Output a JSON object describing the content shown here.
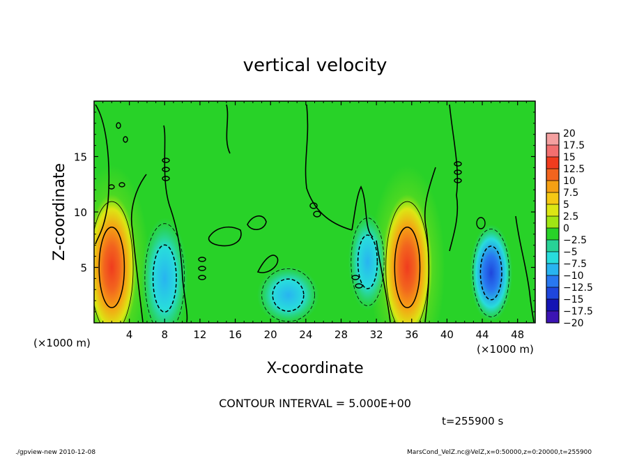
{
  "chart_data": {
    "type": "heatmap",
    "title": "vertical velocity",
    "xlabel": "X-coordinate",
    "ylabel": "Z-coordinate",
    "x_unit_label": "(×1000 m)",
    "z_unit_label": "(×1000 m)",
    "xlim": [
      0,
      50
    ],
    "ylim": [
      0,
      20
    ],
    "x_ticks": [
      "4",
      "8",
      "12",
      "16",
      "20",
      "24",
      "28",
      "32",
      "36",
      "40",
      "44",
      "48"
    ],
    "y_ticks": [
      "5",
      "10",
      "15"
    ],
    "contour_interval_text": "CONTOUR INTERVAL = 5.000E+00",
    "time_text": "t=255900 s",
    "footer_left": "./gpview-new  2010-12-08",
    "footer_right": "MarsCond_VelZ.nc@VelZ,x=0:50000,z=0:20000,t=255900",
    "colorbar": {
      "labels": [
        "20",
        "17.5",
        "15",
        "12.5",
        "10",
        "7.5",
        "5",
        "2.5",
        "0",
        "−2.5",
        "−5",
        "−7.5",
        "−10",
        "−12.5",
        "−15",
        "−17.5",
        "−20"
      ],
      "colors": [
        "#f4a0a0",
        "#f26f6f",
        "#f03c1e",
        "#f2641e",
        "#f5a014",
        "#f5c814",
        "#dce614",
        "#a0e614",
        "#28d228",
        "#28d296",
        "#28dcdc",
        "#28b4f0",
        "#2878f0",
        "#1e46dc",
        "#1414b4",
        "#3c14b4",
        "#6414b4"
      ]
    },
    "cells": [
      {
        "x": 2,
        "z": 5,
        "value": 15,
        "sx": 1.3,
        "sz": 3
      },
      {
        "x": 35.5,
        "z": 5,
        "value": 15,
        "sx": 1.3,
        "sz": 3
      },
      {
        "x": 8,
        "z": 4,
        "value": -7.5,
        "sx": 1.2,
        "sz": 2.5
      },
      {
        "x": 22,
        "z": 2.5,
        "value": -7.5,
        "sx": 1.6,
        "sz": 1.2
      },
      {
        "x": 31,
        "z": 5.5,
        "value": -7.5,
        "sx": 1,
        "sz": 2
      },
      {
        "x": 45,
        "z": 4.5,
        "value": -12.5,
        "sx": 1.1,
        "sz": 2
      }
    ]
  }
}
